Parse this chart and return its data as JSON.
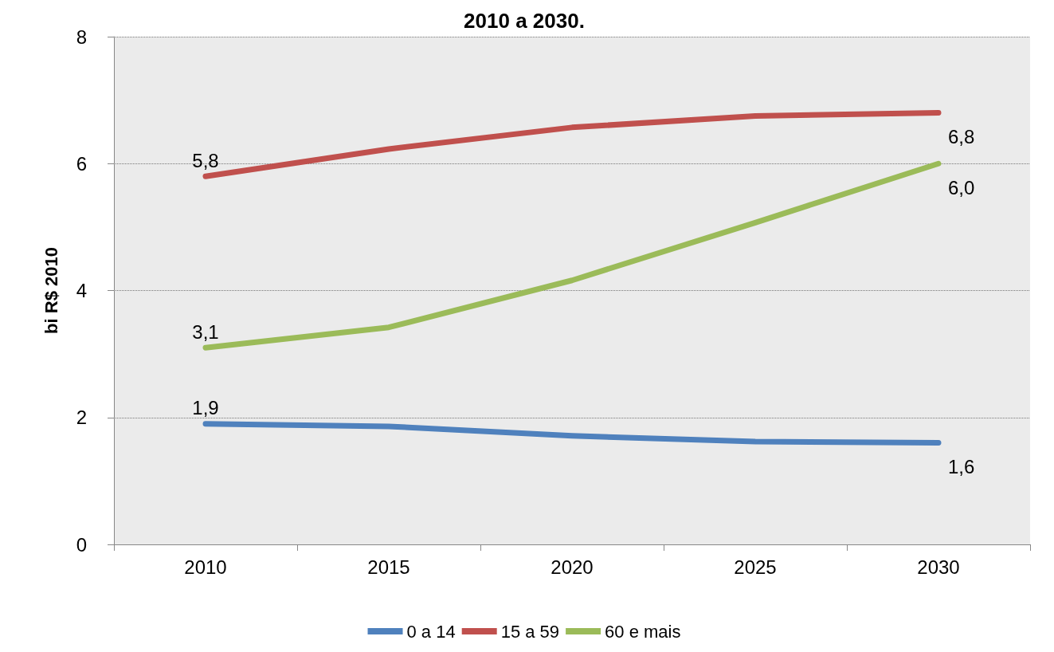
{
  "chart_data": {
    "type": "line",
    "title": "2010 a 2030.",
    "ylabel": "bi R$ 2010",
    "categories": [
      "2010",
      "2015",
      "2020",
      "2025",
      "2030"
    ],
    "series": [
      {
        "name": "0 a 14",
        "color": "#4f81bd",
        "values": [
          1.9,
          1.86,
          1.71,
          1.62,
          1.6
        ],
        "value_labels": [
          "1,9",
          null,
          null,
          null,
          "1,6"
        ]
      },
      {
        "name": "15 a 59",
        "color": "#c0504d",
        "values": [
          5.8,
          6.23,
          6.57,
          6.75,
          6.8
        ],
        "value_labels": [
          "5,8",
          null,
          null,
          null,
          "6,8"
        ]
      },
      {
        "name": "60 e mais",
        "color": "#9bbb59",
        "values": [
          3.1,
          3.42,
          4.16,
          5.07,
          6.0
        ],
        "value_labels": [
          "3,1",
          null,
          null,
          null,
          "6,0"
        ]
      }
    ],
    "ylim": [
      0,
      8
    ],
    "yticks": [
      0,
      2,
      4,
      6,
      8
    ],
    "grid": "y",
    "legend": "bottom",
    "marker": "none",
    "line_style": "solid"
  }
}
